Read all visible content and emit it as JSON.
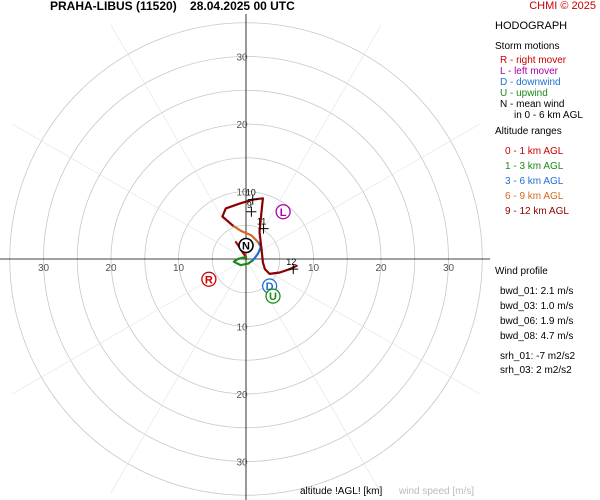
{
  "header": {
    "station": "PRAHA-LIBUS (11520)",
    "datetime": "28.04.2025 00 UTC",
    "copyright": "CHMI © 2025"
  },
  "panel": {
    "title": "HODOGRAPH",
    "storm_motions_title": "Storm motions",
    "storm_motions": [
      {
        "text": "R - right mover",
        "color": "#cc0000"
      },
      {
        "text": "L - left mover",
        "color": "#aa00aa"
      },
      {
        "text": "D - downwind",
        "color": "#1f6fd1"
      },
      {
        "text": "U - upwind",
        "color": "#1a8a1a"
      },
      {
        "text": "N - mean wind",
        "color": "#000000"
      },
      {
        "text": "in 0 - 6 km AGL",
        "color": "#000000"
      }
    ],
    "altitude_title": "Altitude ranges",
    "altitude_ranges": [
      {
        "text": "0 - 1 km AGL",
        "color": "#cc0000"
      },
      {
        "text": "1 - 3 km AGL",
        "color": "#1a8a1a"
      },
      {
        "text": "3 - 6 km AGL",
        "color": "#1f6fd1"
      },
      {
        "text": "6 - 9 km AGL",
        "color": "#d2691e"
      },
      {
        "text": "9 - 12 km AGL",
        "color": "#8b0000"
      }
    ],
    "wind_profile_title": "Wind profile",
    "wind_profile": [
      "bwd_01: 2.1 m/s",
      "bwd_03: 1.0 m/s",
      "bwd_06: 1.9 m/s",
      "bwd_08: 4.7 m/s"
    ],
    "srh": [
      "srh_01: -7 m2/s2",
      "srh_03: 2 m2/s2"
    ]
  },
  "footer": {
    "altitude_label": "altitude !AGL! [km]",
    "wind_speed_label": "wind speed [m/s]"
  },
  "chart_data": {
    "type": "line",
    "title": "HODOGRAPH",
    "rings": [
      5,
      10,
      15,
      20,
      25,
      30,
      35
    ],
    "axis_tick_labels": [
      10,
      20,
      30
    ],
    "xlim": [
      -35,
      35
    ],
    "ylim": [
      -35,
      35
    ],
    "units": "m/s",
    "segments": [
      {
        "name": "0 - 1 km AGL",
        "color": "#cc0000",
        "points": [
          [
            -1.5,
            2.5
          ],
          [
            -1.0,
            1.8
          ],
          [
            -0.5,
            1.0
          ],
          [
            0.0,
            0.3
          ]
        ]
      },
      {
        "name": "1 - 3 km AGL",
        "color": "#1a8a1a",
        "points": [
          [
            0.0,
            0.3
          ],
          [
            -1.2,
            0.0
          ],
          [
            -1.8,
            -0.4
          ],
          [
            -0.8,
            -0.9
          ],
          [
            0.3,
            -0.7
          ],
          [
            1.0,
            -0.2
          ]
        ]
      },
      {
        "name": "3 - 6 km AGL",
        "color": "#1f6fd1",
        "points": [
          [
            1.0,
            -0.2
          ],
          [
            1.8,
            0.8
          ],
          [
            2.2,
            1.8
          ],
          [
            1.8,
            2.5
          ]
        ]
      },
      {
        "name": "6 - 9 km AGL",
        "color": "#d2691e",
        "points": [
          [
            1.8,
            2.5
          ],
          [
            0.8,
            3.5
          ],
          [
            -0.8,
            4.2
          ],
          [
            -2.0,
            5.0
          ]
        ]
      },
      {
        "name": "9 - 12 km AGL",
        "color": "#8b0000",
        "points": [
          [
            -2.0,
            5.0
          ],
          [
            -3.5,
            6.3
          ],
          [
            -3.0,
            7.5
          ],
          [
            -1.0,
            8.2
          ],
          [
            1.0,
            8.8
          ],
          [
            2.5,
            9.0
          ],
          [
            2.3,
            7.0
          ],
          [
            2.0,
            4.0
          ],
          [
            2.3,
            1.5
          ],
          [
            2.5,
            -0.5
          ],
          [
            2.8,
            -1.5
          ],
          [
            3.5,
            -2.2
          ],
          [
            5.0,
            -2.0
          ],
          [
            6.5,
            -1.5
          ],
          [
            7.5,
            -1.0
          ]
        ]
      }
    ],
    "height_marks": [
      {
        "label": "9",
        "point": [
          0.8,
          7.0
        ]
      },
      {
        "label": "10",
        "point": [
          1.0,
          8.8
        ]
      },
      {
        "label": "11",
        "point": [
          2.6,
          4.5
        ]
      },
      {
        "label": "12",
        "point": [
          7.0,
          -1.5
        ]
      }
    ],
    "storm_motions": [
      {
        "label": "R",
        "u": -5.5,
        "v": -3.0,
        "color": "#cc0000"
      },
      {
        "label": "L",
        "u": 5.5,
        "v": 7.0,
        "color": "#aa00aa"
      },
      {
        "label": "D",
        "u": 3.5,
        "v": -4.0,
        "color": "#1f6fd1"
      },
      {
        "label": "U",
        "u": 4.0,
        "v": -5.5,
        "color": "#1a8a1a"
      },
      {
        "label": "N",
        "u": 0.0,
        "v": 2.0,
        "color": "#000000"
      }
    ]
  }
}
